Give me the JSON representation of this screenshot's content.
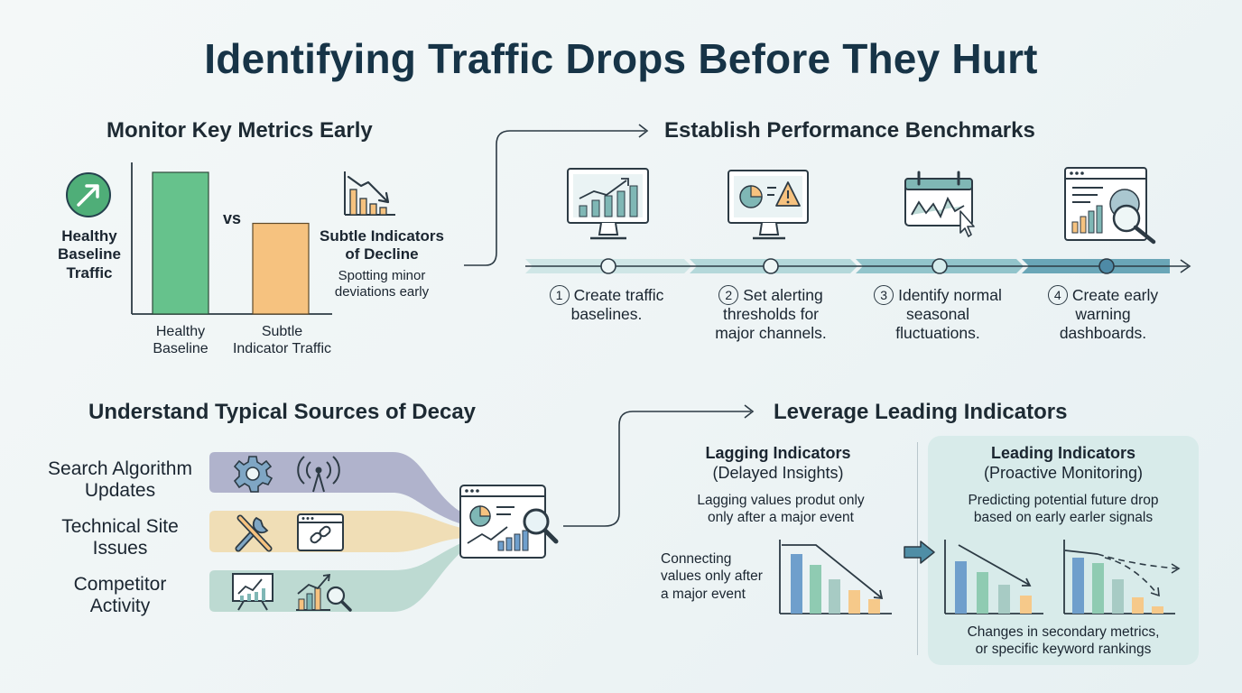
{
  "title": "Identifying Traffic Drops Before They Hurt",
  "monitor": {
    "heading": "Monitor Key Metrics Early",
    "healthy_label": [
      "Healthy",
      "Baseline",
      "Traffic"
    ],
    "vs": "vs",
    "decline_title": [
      "Subtle Indicators",
      "of Decline"
    ],
    "decline_desc": [
      "Spotting minor",
      "deviations early"
    ],
    "chart_data": {
      "type": "bar",
      "categories": [
        "Healthy Baseline",
        "Subtle Indicator Traffic"
      ],
      "category_lines": [
        [
          "Healthy",
          "Baseline"
        ],
        [
          "Subtle",
          "Indicator Traffic"
        ]
      ],
      "values": [
        100,
        64
      ],
      "colors": [
        "#66c28c",
        "#f6c27f"
      ]
    }
  },
  "benchmarks": {
    "heading": "Establish Performance Benchmarks",
    "steps": [
      {
        "num": "1",
        "lines": [
          "Create traffic",
          "baselines."
        ],
        "icon": "monitor-bar-chart-icon"
      },
      {
        "num": "2",
        "lines": [
          "Set alerting",
          "thresholds for",
          "major channels."
        ],
        "icon": "monitor-alert-icon"
      },
      {
        "num": "3",
        "lines": [
          "Identify normal",
          "seasonal",
          "fluctuations."
        ],
        "icon": "calendar-trend-icon"
      },
      {
        "num": "4",
        "lines": [
          "Create early",
          "warning",
          "dashboards."
        ],
        "icon": "dashboard-search-icon"
      }
    ]
  },
  "decay": {
    "heading": "Understand Typical Sources of Decay",
    "sources": [
      {
        "lines": [
          "Search Algorithm",
          "Updates"
        ],
        "color": "#a9acc8"
      },
      {
        "lines": [
          "Technical Site",
          "Issues"
        ],
        "color": "#efdcb2"
      },
      {
        "lines": [
          "Competitor",
          "Activity"
        ],
        "color": "#b9d8d0"
      }
    ]
  },
  "leading": {
    "heading": "Leverage Leading Indicators",
    "lagging_title": "Lagging Indicators",
    "lagging_sub": "(Delayed Insights)",
    "lagging_desc": [
      "Lagging values produt only",
      "only after a major event"
    ],
    "lagging_note": [
      "Connecting",
      "values only after",
      "a major event"
    ],
    "leading_title": "Leading Indicators",
    "leading_sub": "(Proactive Monitoring)",
    "leading_desc": [
      "Predicting potential future drop",
      "based on early earler signals"
    ],
    "leading_note": [
      "Changes in secondary metrics,",
      "or specific keyword rankings"
    ],
    "bar_colors": [
      "#6f9fcc",
      "#8fcbb2",
      "#a7cbc4",
      "#f6c98a"
    ]
  }
}
